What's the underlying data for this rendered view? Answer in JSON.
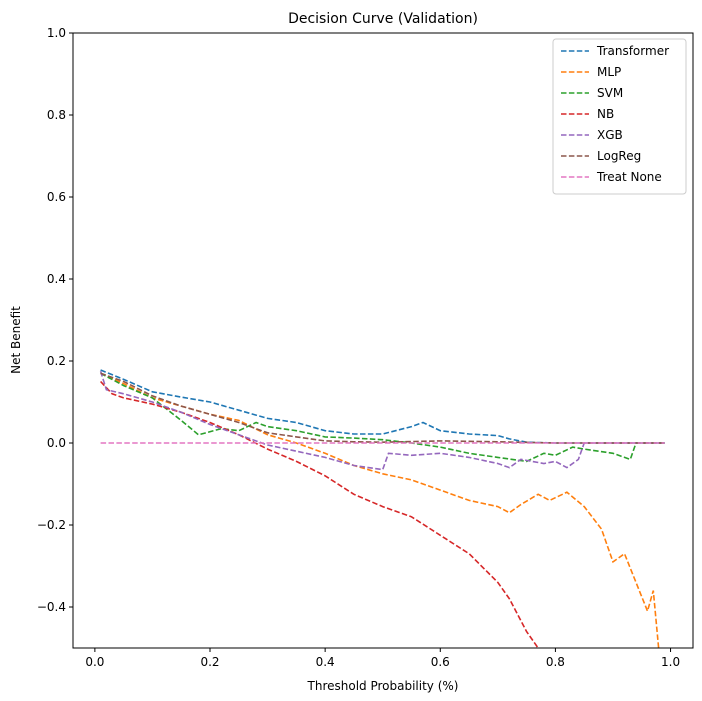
{
  "chart_data": {
    "type": "line",
    "title": "Decision Curve (Validation)",
    "xlabel": "Threshold Probability (%)",
    "ylabel": "Net Benefit",
    "xlim": [
      -0.038,
      1.039
    ],
    "ylim": [
      -0.5,
      1.0
    ],
    "xticks": [
      0.0,
      0.2,
      0.4,
      0.6,
      0.8,
      1.0
    ],
    "yticks": [
      -0.4,
      -0.2,
      0.0,
      0.2,
      0.4,
      0.6,
      0.8,
      1.0
    ],
    "xtick_labels": [
      "0.0",
      "0.2",
      "0.4",
      "0.6",
      "0.8",
      "1.0"
    ],
    "ytick_labels": [
      "−0.4",
      "−0.2",
      "0.0",
      "0.2",
      "0.4",
      "0.6",
      "0.8",
      "1.0"
    ],
    "grid": false,
    "legend_position": "top-right",
    "line_style": "dashed",
    "series": [
      {
        "name": "Transformer",
        "color": "#1f77b4",
        "points": [
          [
            0.01,
            0.178
          ],
          [
            0.05,
            0.155
          ],
          [
            0.1,
            0.125
          ],
          [
            0.15,
            0.112
          ],
          [
            0.2,
            0.1
          ],
          [
            0.25,
            0.08
          ],
          [
            0.3,
            0.06
          ],
          [
            0.35,
            0.05
          ],
          [
            0.4,
            0.03
          ],
          [
            0.45,
            0.022
          ],
          [
            0.5,
            0.022
          ],
          [
            0.55,
            0.04
          ],
          [
            0.57,
            0.05
          ],
          [
            0.6,
            0.03
          ],
          [
            0.65,
            0.022
          ],
          [
            0.7,
            0.018
          ],
          [
            0.72,
            0.01
          ],
          [
            0.75,
            0.002
          ],
          [
            0.8,
            0.0
          ],
          [
            0.85,
            0.0
          ],
          [
            0.9,
            0.0
          ],
          [
            0.95,
            0.0
          ],
          [
            0.99,
            0.0
          ]
        ]
      },
      {
        "name": "MLP",
        "color": "#ff7f0e",
        "points": [
          [
            0.01,
            0.17
          ],
          [
            0.05,
            0.145
          ],
          [
            0.1,
            0.11
          ],
          [
            0.15,
            0.09
          ],
          [
            0.2,
            0.07
          ],
          [
            0.25,
            0.055
          ],
          [
            0.3,
            0.02
          ],
          [
            0.35,
            0.0
          ],
          [
            0.4,
            -0.025
          ],
          [
            0.45,
            -0.055
          ],
          [
            0.5,
            -0.075
          ],
          [
            0.55,
            -0.09
          ],
          [
            0.6,
            -0.115
          ],
          [
            0.65,
            -0.14
          ],
          [
            0.7,
            -0.155
          ],
          [
            0.72,
            -0.17
          ],
          [
            0.74,
            -0.15
          ],
          [
            0.77,
            -0.125
          ],
          [
            0.79,
            -0.14
          ],
          [
            0.82,
            -0.12
          ],
          [
            0.85,
            -0.155
          ],
          [
            0.88,
            -0.21
          ],
          [
            0.9,
            -0.29
          ],
          [
            0.92,
            -0.27
          ],
          [
            0.94,
            -0.34
          ],
          [
            0.96,
            -0.41
          ],
          [
            0.97,
            -0.36
          ],
          [
            0.98,
            -0.51
          ]
        ]
      },
      {
        "name": "SVM",
        "color": "#2ca02c",
        "points": [
          [
            0.01,
            0.17
          ],
          [
            0.05,
            0.14
          ],
          [
            0.1,
            0.11
          ],
          [
            0.15,
            0.055
          ],
          [
            0.18,
            0.02
          ],
          [
            0.22,
            0.035
          ],
          [
            0.25,
            0.03
          ],
          [
            0.28,
            0.05
          ],
          [
            0.3,
            0.04
          ],
          [
            0.35,
            0.03
          ],
          [
            0.4,
            0.015
          ],
          [
            0.45,
            0.012
          ],
          [
            0.5,
            0.008
          ],
          [
            0.55,
            0.0
          ],
          [
            0.6,
            -0.01
          ],
          [
            0.65,
            -0.025
          ],
          [
            0.7,
            -0.035
          ],
          [
            0.75,
            -0.045
          ],
          [
            0.78,
            -0.025
          ],
          [
            0.8,
            -0.03
          ],
          [
            0.83,
            -0.01
          ],
          [
            0.85,
            -0.015
          ],
          [
            0.9,
            -0.025
          ],
          [
            0.93,
            -0.04
          ],
          [
            0.94,
            0.0
          ],
          [
            0.99,
            0.0
          ]
        ]
      },
      {
        "name": "NB",
        "color": "#d62728",
        "points": [
          [
            0.01,
            0.15
          ],
          [
            0.03,
            0.12
          ],
          [
            0.05,
            0.11
          ],
          [
            0.1,
            0.095
          ],
          [
            0.15,
            0.075
          ],
          [
            0.2,
            0.05
          ],
          [
            0.25,
            0.02
          ],
          [
            0.3,
            -0.015
          ],
          [
            0.35,
            -0.045
          ],
          [
            0.4,
            -0.08
          ],
          [
            0.45,
            -0.125
          ],
          [
            0.5,
            -0.155
          ],
          [
            0.55,
            -0.18
          ],
          [
            0.6,
            -0.225
          ],
          [
            0.65,
            -0.27
          ],
          [
            0.7,
            -0.34
          ],
          [
            0.72,
            -0.38
          ],
          [
            0.75,
            -0.46
          ],
          [
            0.77,
            -0.5
          ]
        ]
      },
      {
        "name": "XGB",
        "color": "#9467bd",
        "points": [
          [
            0.01,
            0.175
          ],
          [
            0.02,
            0.13
          ],
          [
            0.05,
            0.12
          ],
          [
            0.1,
            0.1
          ],
          [
            0.15,
            0.075
          ],
          [
            0.2,
            0.045
          ],
          [
            0.25,
            0.02
          ],
          [
            0.3,
            -0.005
          ],
          [
            0.35,
            -0.02
          ],
          [
            0.4,
            -0.035
          ],
          [
            0.45,
            -0.055
          ],
          [
            0.5,
            -0.065
          ],
          [
            0.51,
            -0.025
          ],
          [
            0.55,
            -0.03
          ],
          [
            0.6,
            -0.025
          ],
          [
            0.65,
            -0.035
          ],
          [
            0.7,
            -0.05
          ],
          [
            0.72,
            -0.06
          ],
          [
            0.74,
            -0.04
          ],
          [
            0.78,
            -0.05
          ],
          [
            0.8,
            -0.045
          ],
          [
            0.82,
            -0.06
          ],
          [
            0.84,
            -0.04
          ],
          [
            0.85,
            0.0
          ],
          [
            0.9,
            0.0
          ],
          [
            0.99,
            0.0
          ]
        ]
      },
      {
        "name": "LogReg",
        "color": "#8c564b",
        "points": [
          [
            0.01,
            0.17
          ],
          [
            0.05,
            0.15
          ],
          [
            0.1,
            0.115
          ],
          [
            0.15,
            0.09
          ],
          [
            0.2,
            0.07
          ],
          [
            0.25,
            0.05
          ],
          [
            0.3,
            0.025
          ],
          [
            0.35,
            0.015
          ],
          [
            0.4,
            0.005
          ],
          [
            0.45,
            0.003
          ],
          [
            0.5,
            0.002
          ],
          [
            0.6,
            0.005
          ],
          [
            0.7,
            0.003
          ],
          [
            0.8,
            0.0
          ],
          [
            0.9,
            0.0
          ],
          [
            0.99,
            0.0
          ]
        ]
      },
      {
        "name": "Treat None",
        "color": "#e377c2",
        "points": [
          [
            0.01,
            0.0
          ],
          [
            0.99,
            0.0
          ]
        ]
      }
    ]
  }
}
